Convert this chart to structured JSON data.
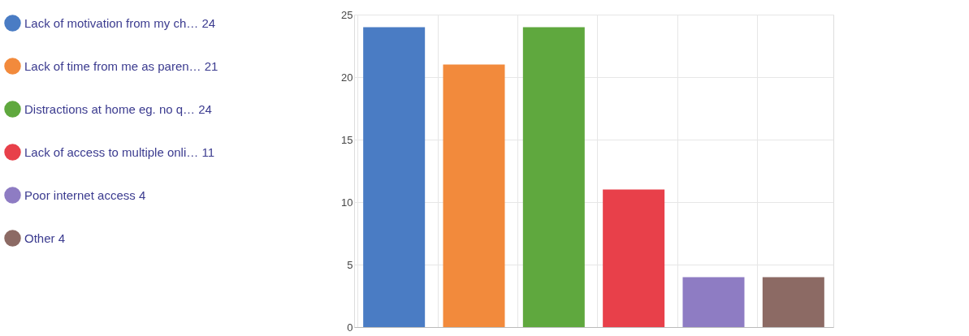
{
  "chart_data": {
    "type": "bar",
    "categories": [
      null,
      null,
      null,
      null,
      null,
      null
    ],
    "series": [
      {
        "name": "Lack of motivation from my ch… 24",
        "color": "#4a7cc4",
        "values": [
          24,
          null,
          null,
          null,
          null,
          null
        ]
      },
      {
        "name": "Lack of time from me as paren… 21",
        "color": "#f28a3c",
        "values": [
          null,
          21,
          null,
          null,
          null,
          null
        ]
      },
      {
        "name": "Distractions at home eg. no q… 24",
        "color": "#5fa83e",
        "values": [
          null,
          null,
          24,
          null,
          null,
          null
        ]
      },
      {
        "name": "Lack of access to multiple onli… 11",
        "color": "#e8404a",
        "values": [
          null,
          null,
          null,
          11,
          null,
          null
        ]
      },
      {
        "name": "Poor internet access 4",
        "color": "#8e7cc3",
        "values": [
          null,
          null,
          null,
          null,
          4,
          null
        ]
      },
      {
        "name": "Other 4",
        "color": "#8c6a64",
        "values": [
          null,
          null,
          null,
          null,
          null,
          4
        ]
      }
    ],
    "ylim": [
      0,
      25
    ],
    "yticks": [
      0,
      5,
      10,
      15,
      20,
      25
    ],
    "grid": true,
    "legend": "left",
    "tick_labels": "y"
  }
}
